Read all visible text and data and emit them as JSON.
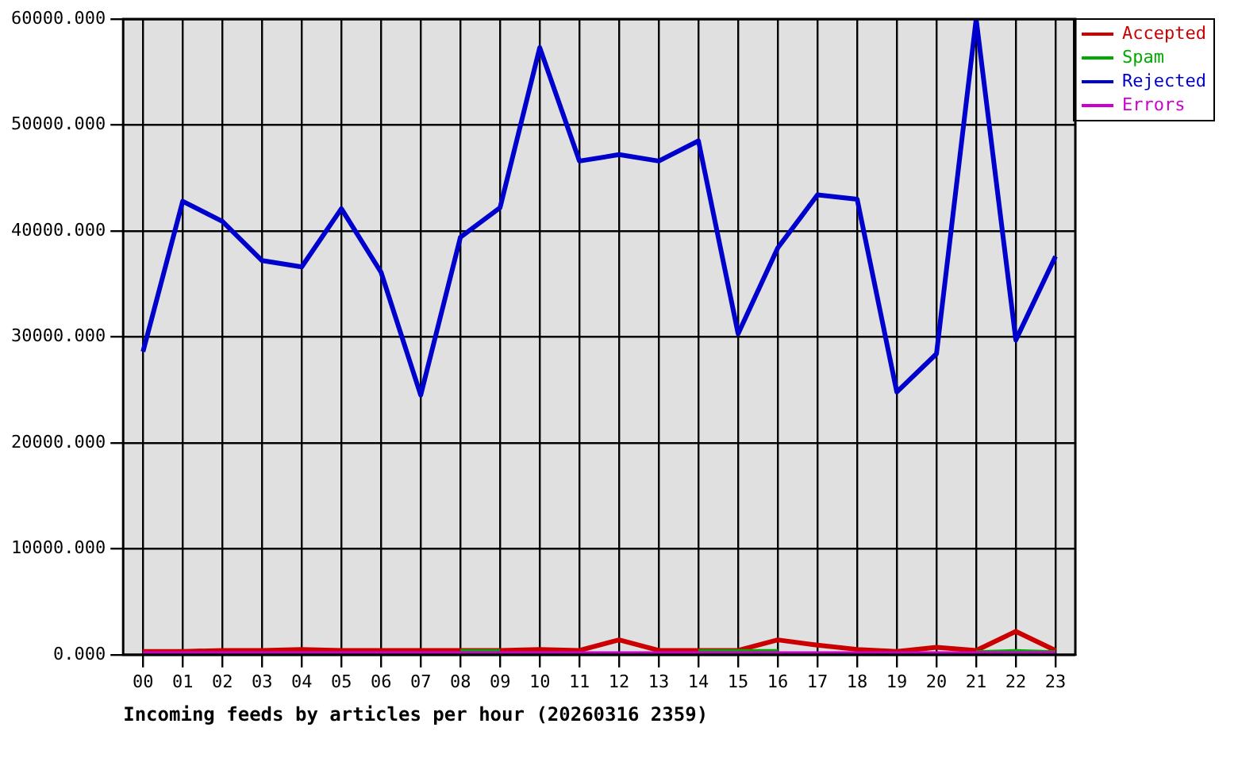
{
  "chart_data": {
    "type": "line",
    "xlabel": "Incoming feeds by articles per hour (20260316 2359)",
    "categories": [
      "00",
      "01",
      "02",
      "03",
      "04",
      "05",
      "06",
      "07",
      "08",
      "09",
      "10",
      "11",
      "12",
      "13",
      "14",
      "15",
      "16",
      "17",
      "18",
      "19",
      "20",
      "21",
      "22",
      "23"
    ],
    "series": [
      {
        "name": "Accepted",
        "color": "#cc0000",
        "values": [
          300,
          300,
          400,
          400,
          500,
          400,
          400,
          400,
          400,
          400,
          500,
          400,
          1400,
          400,
          400,
          400,
          1400,
          900,
          500,
          300,
          700,
          400,
          2200,
          400
        ]
      },
      {
        "name": "Spam",
        "color": "#00aa00",
        "values": [
          null,
          null,
          null,
          null,
          null,
          null,
          null,
          null,
          300,
          300,
          null,
          null,
          null,
          null,
          300,
          300,
          300,
          null,
          null,
          null,
          null,
          200,
          300,
          200
        ]
      },
      {
        "name": "Rejected",
        "color": "#0000cc",
        "values": [
          28600,
          42800,
          40900,
          37200,
          36600,
          42100,
          36100,
          24500,
          39400,
          42200,
          57300,
          46600,
          47200,
          46600,
          48500,
          30300,
          38400,
          43400,
          43000,
          24800,
          28400,
          60000,
          29700,
          37600
        ]
      },
      {
        "name": "Errors",
        "color": "#cc00cc",
        "values": [
          100,
          100,
          100,
          100,
          100,
          100,
          100,
          100,
          100,
          100,
          100,
          100,
          100,
          100,
          100,
          100,
          100,
          100,
          100,
          100,
          100,
          100,
          100,
          100
        ]
      }
    ],
    "ylim": [
      0,
      60000
    ],
    "yticks": [
      {
        "value": 0,
        "label": "0.000"
      },
      {
        "value": 10000,
        "label": "10000.000"
      },
      {
        "value": 20000,
        "label": "20000.000"
      },
      {
        "value": 30000,
        "label": "30000.000"
      },
      {
        "value": 40000,
        "label": "40000.000"
      },
      {
        "value": 50000,
        "label": "50000.000"
      },
      {
        "value": 60000,
        "label": "60000.000"
      }
    ],
    "grid": true,
    "legend": "top right",
    "marker": "none",
    "line_style": "solid"
  }
}
